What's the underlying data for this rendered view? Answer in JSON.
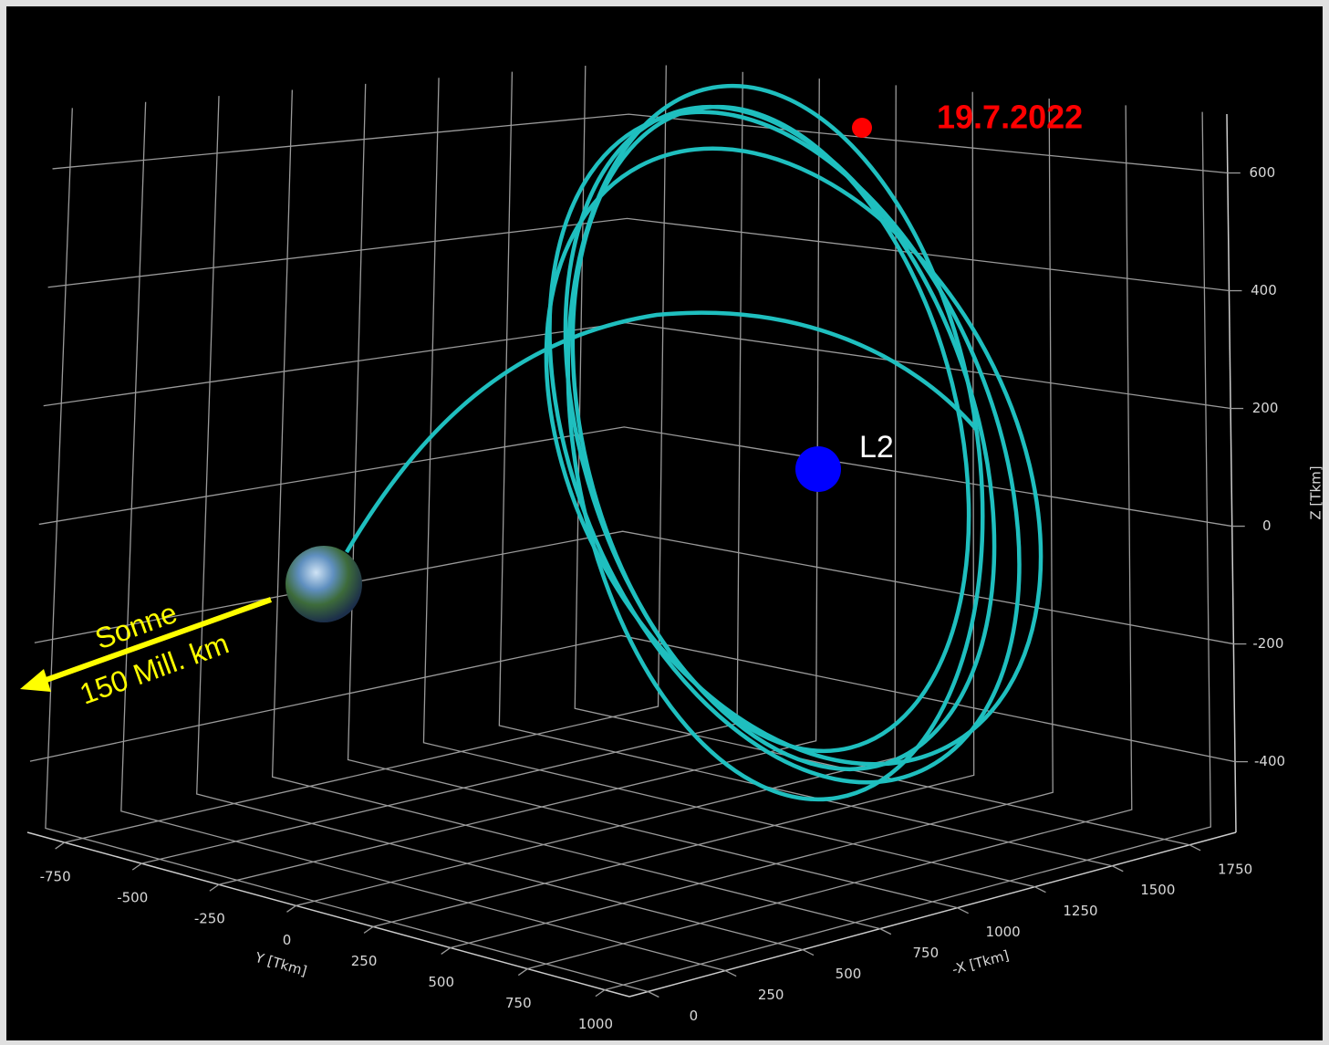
{
  "chart_data": {
    "type": "line3d",
    "xlabel": "-X [Tkm]",
    "ylabel": "Y [Tkm]",
    "zlabel": "Z [Tkm]",
    "xlim": [
      -60,
      1900
    ],
    "ylim": [
      -870,
      1080
    ],
    "zlim": [
      -520,
      700
    ],
    "xticks": [
      0,
      250,
      500,
      750,
      1000,
      1250,
      1500,
      1750
    ],
    "yticks": [
      -750,
      -500,
      -250,
      0,
      250,
      500,
      750,
      1000
    ],
    "zticks": [
      -400,
      -200,
      0,
      200,
      400,
      600
    ],
    "grid": true,
    "color": "#1fbfbf",
    "annotations": {
      "date": "19.7.2022",
      "point": "L2",
      "sun": "Sonne",
      "distance": "150 Mill. km"
    }
  }
}
